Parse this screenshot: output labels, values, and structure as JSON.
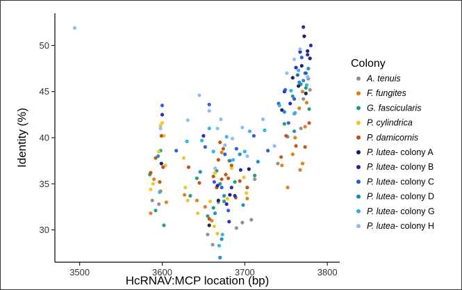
{
  "chart_data": {
    "type": "scatter",
    "title": "",
    "xlabel": "HcRNAV:MCP location (bp)",
    "ylabel": "Identity (%)",
    "xlim": [
      3470,
      3815
    ],
    "ylim": [
      26.5,
      53.5
    ],
    "xticks": [
      3500,
      3600,
      3700,
      3800
    ],
    "yticks": [
      30,
      35,
      40,
      45,
      50
    ],
    "grid": false,
    "legend_title": "Colony",
    "legend_position": "right",
    "series": [
      {
        "name": "A. tenuis",
        "italic": "A. tenuis",
        "suffix": "",
        "color": "#8c8c8c",
        "points": [
          [
            3588,
            33.2
          ],
          [
            3596,
            32.8
          ],
          [
            3655,
            29.5
          ],
          [
            3661,
            28.4
          ],
          [
            3668,
            33.0
          ],
          [
            3690,
            30.2
          ],
          [
            3697,
            30.8
          ],
          [
            3708,
            31.1
          ],
          [
            3712,
            35.5
          ],
          [
            3740,
            37.2
          ],
          [
            3752,
            40.1
          ],
          [
            3760,
            42.6
          ],
          [
            3771,
            44.2
          ],
          [
            3777,
            46.4
          ],
          [
            3779,
            45.2
          ],
          [
            3768,
            41.0
          ]
        ]
      },
      {
        "name": "F. fungites",
        "italic": "F. fungites",
        "suffix": "",
        "color": "#e07b10",
        "points": [
          [
            3586,
            31.8
          ],
          [
            3590,
            35.5
          ],
          [
            3598,
            34.2
          ],
          [
            3605,
            33.0
          ],
          [
            3627,
            33.8
          ],
          [
            3642,
            33.2
          ],
          [
            3652,
            32.5
          ],
          [
            3660,
            31.0
          ],
          [
            3672,
            38.4
          ],
          [
            3681,
            37.5
          ],
          [
            3703,
            33.4
          ],
          [
            3745,
            37.0
          ],
          [
            3752,
            34.6
          ],
          [
            3758,
            38.2
          ],
          [
            3761,
            40.0
          ],
          [
            3766,
            43.2
          ],
          [
            3770,
            37.2
          ],
          [
            3773,
            41.2
          ],
          [
            3775,
            43.8
          ],
          [
            3767,
            36.5
          ],
          [
            3770,
            45.0
          ]
        ]
      },
      {
        "name": "G. fascicularis",
        "italic": "G. fascicularis",
        "suffix": "",
        "color": "#1f9a6f",
        "points": [
          [
            3585,
            36.0
          ],
          [
            3592,
            32.1
          ],
          [
            3598,
            38.6
          ],
          [
            3602,
            30.5
          ],
          [
            3634,
            33.7
          ],
          [
            3642,
            35.6
          ],
          [
            3655,
            31.5
          ],
          [
            3662,
            32.4
          ],
          [
            3666,
            36.4
          ],
          [
            3670,
            35.0
          ],
          [
            3675,
            33.1
          ],
          [
            3688,
            35.2
          ],
          [
            3712,
            35.9
          ],
          [
            3748,
            41.5
          ],
          [
            3758,
            44.5
          ],
          [
            3768,
            45.8
          ],
          [
            3774,
            45.4
          ],
          [
            3778,
            43.1
          ],
          [
            3773,
            47.0
          ]
        ]
      },
      {
        "name": "P. cylindrica",
        "italic": "P. cylindrica",
        "suffix": "",
        "color": "#f0c419",
        "points": [
          [
            3586,
            34.4
          ],
          [
            3589,
            35.0
          ],
          [
            3596,
            38.5
          ],
          [
            3598,
            41.3
          ],
          [
            3600,
            41.6
          ],
          [
            3602,
            40.2
          ],
          [
            3604,
            37.0
          ],
          [
            3626,
            37.8
          ],
          [
            3628,
            34.6
          ],
          [
            3631,
            33.2
          ],
          [
            3643,
            31.8
          ],
          [
            3658,
            33.1
          ],
          [
            3663,
            30.4
          ],
          [
            3664,
            36.2
          ],
          [
            3667,
            29.6
          ],
          [
            3679,
            33.4
          ],
          [
            3684,
            36.7
          ],
          [
            3699,
            35.7
          ],
          [
            3702,
            34.0
          ]
        ]
      },
      {
        "name": "P. damicornis",
        "italic": "P. damicornis",
        "suffix": "",
        "color": "#c24e0a",
        "points": [
          [
            3586,
            36.2
          ],
          [
            3592,
            37.8
          ],
          [
            3597,
            35.2
          ],
          [
            3599,
            40.2
          ],
          [
            3601,
            36.8
          ],
          [
            3632,
            36.8
          ],
          [
            3645,
            35.1
          ],
          [
            3657,
            31.2
          ],
          [
            3662,
            35.8
          ],
          [
            3666,
            34.6
          ],
          [
            3668,
            37.6
          ],
          [
            3670,
            39.5
          ],
          [
            3672,
            35.5
          ],
          [
            3674,
            38.8
          ],
          [
            3677,
            36.0
          ],
          [
            3680,
            35.6
          ],
          [
            3684,
            37.0
          ],
          [
            3689,
            33.5
          ],
          [
            3694,
            35.3
          ],
          [
            3703,
            34.6
          ],
          [
            3744,
            37.9
          ],
          [
            3750,
            40.2
          ],
          [
            3762,
            39.1
          ],
          [
            3773,
            39.0
          ],
          [
            3778,
            41.6
          ]
        ]
      },
      {
        "name": "P. lutea- colony A",
        "italic": "P. lutea",
        "suffix": "- colony A",
        "color": "#0d1a66",
        "points": [
          [
            3599,
            37.2
          ],
          [
            3657,
            30.5
          ],
          [
            3668,
            33.2
          ],
          [
            3682,
            33.8
          ],
          [
            3705,
            36.6
          ],
          [
            3745,
            43.0
          ],
          [
            3758,
            46.5
          ],
          [
            3765,
            45.6
          ],
          [
            3769,
            47.8
          ],
          [
            3772,
            51.0
          ],
          [
            3776,
            49.4
          ],
          [
            3779,
            48.6
          ],
          [
            3774,
            44.8
          ]
        ]
      },
      {
        "name": "P. lutea- colony B",
        "italic": "P. lutea",
        "suffix": "- colony B",
        "color": "#1f22b8",
        "points": [
          [
            3600,
            42.5
          ],
          [
            3650,
            40.2
          ],
          [
            3667,
            34.8
          ],
          [
            3678,
            32.8
          ],
          [
            3681,
            30.9
          ],
          [
            3684,
            34.6
          ],
          [
            3688,
            33.7
          ],
          [
            3695,
            36.5
          ],
          [
            3748,
            45.0
          ],
          [
            3755,
            43.7
          ],
          [
            3762,
            47.6
          ],
          [
            3767,
            49.3
          ],
          [
            3771,
            52.0
          ],
          [
            3776,
            49.0
          ],
          [
            3780,
            50.0
          ]
        ]
      },
      {
        "name": "P. lutea- colony C",
        "italic": "P. lutea",
        "suffix": "- colony C",
        "color": "#2458d8",
        "points": [
          [
            3600,
            43.5
          ],
          [
            3617,
            38.6
          ],
          [
            3652,
            39.0
          ],
          [
            3657,
            43.6
          ],
          [
            3663,
            35.2
          ],
          [
            3672,
            34.6
          ],
          [
            3676,
            38.2
          ],
          [
            3680,
            32.1
          ],
          [
            3690,
            38.8
          ],
          [
            3711,
            40.2
          ],
          [
            3728,
            38.6
          ],
          [
            3741,
            43.7
          ],
          [
            3749,
            45.2
          ],
          [
            3753,
            41.6
          ],
          [
            3760,
            44.2
          ],
          [
            3764,
            46.8
          ],
          [
            3769,
            48.7
          ],
          [
            3774,
            47.0
          ]
        ]
      },
      {
        "name": "P. lutea- colony D",
        "italic": "P. lutea",
        "suffix": "- colony D",
        "color": "#1688c8",
        "points": [
          [
            3595,
            38.0
          ],
          [
            3646,
            36.3
          ],
          [
            3664,
            31.8
          ],
          [
            3670,
            27.0
          ],
          [
            3672,
            29.0
          ],
          [
            3675,
            33.7
          ],
          [
            3682,
            37.5
          ],
          [
            3694,
            38.2
          ],
          [
            3698,
            32.7
          ],
          [
            3716,
            37.4
          ],
          [
            3748,
            42.8
          ],
          [
            3760,
            40.7
          ],
          [
            3766,
            46.0
          ],
          [
            3771,
            46.2
          ],
          [
            3777,
            47.5
          ]
        ]
      },
      {
        "name": "P. lutea- colony G",
        "italic": "P. lutea",
        "suffix": "- colony G",
        "color": "#23b4ea",
        "points": [
          [
            3597,
            34.1
          ],
          [
            3630,
            39.6
          ],
          [
            3648,
            39.7
          ],
          [
            3657,
            41.0
          ],
          [
            3662,
            38.5
          ],
          [
            3669,
            28.3
          ],
          [
            3673,
            29.5
          ],
          [
            3678,
            40.1
          ],
          [
            3686,
            37.6
          ],
          [
            3700,
            38.5
          ],
          [
            3706,
            40.7
          ],
          [
            3724,
            40.8
          ],
          [
            3742,
            43.5
          ],
          [
            3756,
            45.1
          ],
          [
            3761,
            42.7
          ],
          [
            3765,
            47.3
          ],
          [
            3775,
            45.7
          ]
        ]
      },
      {
        "name": "P. lutea- colony H",
        "italic": "P. lutea",
        "suffix": "- colony H",
        "color": "#8cb9f2",
        "points": [
          [
            3494,
            51.9
          ],
          [
            3598,
            41.0
          ],
          [
            3631,
            41.9
          ],
          [
            3645,
            44.6
          ],
          [
            3657,
            42.9
          ],
          [
            3664,
            36.7
          ],
          [
            3667,
            41.0
          ],
          [
            3671,
            42.0
          ],
          [
            3676,
            39.2
          ],
          [
            3685,
            39.9
          ],
          [
            3697,
            41.1
          ],
          [
            3703,
            38.0
          ],
          [
            3722,
            42.0
          ],
          [
            3736,
            39.1
          ],
          [
            3751,
            47.0
          ],
          [
            3760,
            48.5
          ],
          [
            3767,
            49.6
          ],
          [
            3776,
            46.6
          ]
        ]
      }
    ]
  }
}
